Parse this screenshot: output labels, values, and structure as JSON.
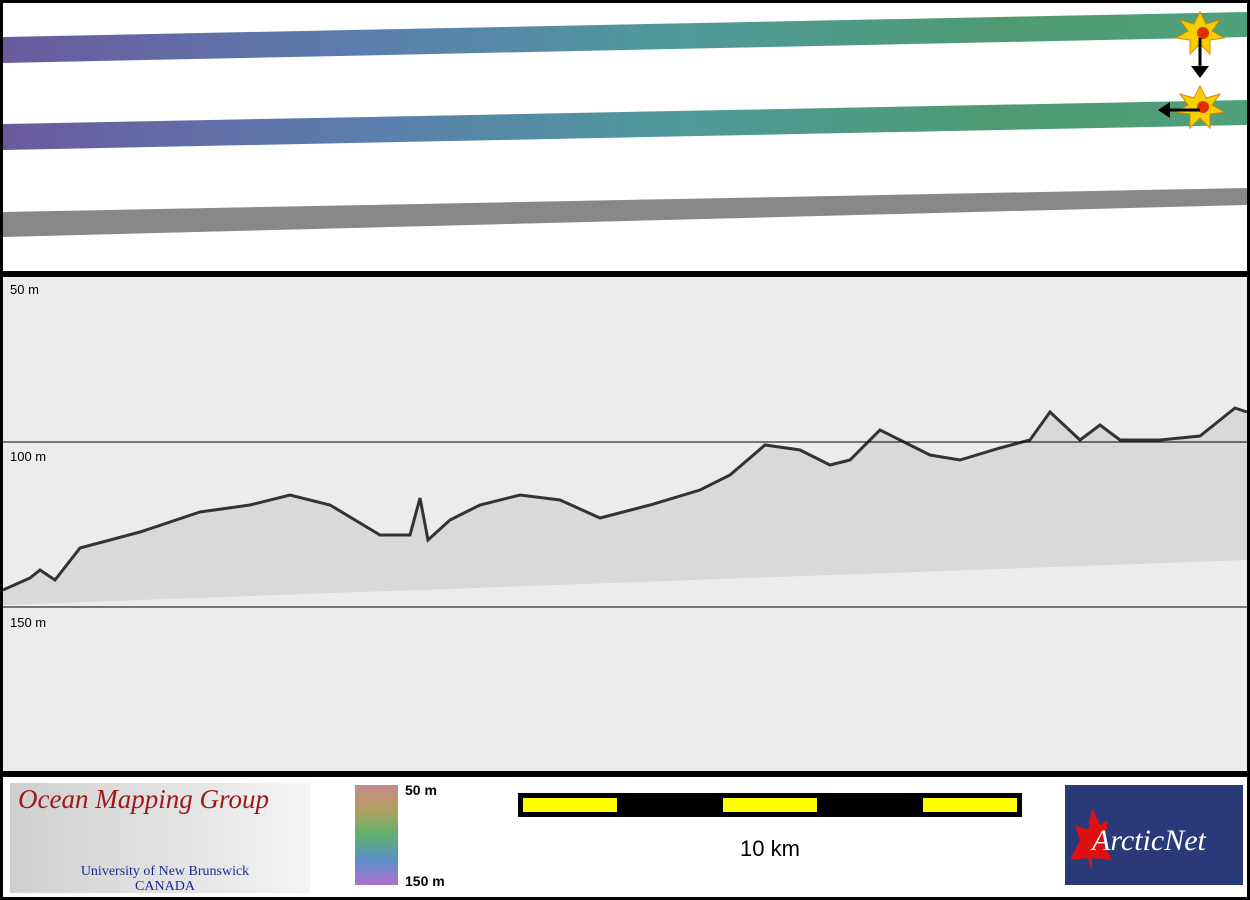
{
  "profile": {
    "depth_labels": [
      "50 m",
      "100 m",
      "150 m"
    ]
  },
  "footer": {
    "logo": {
      "title": "Ocean Mapping Group",
      "university": "University of New Brunswick",
      "country": "CANADA"
    },
    "colorbar": {
      "top": "50 m",
      "bottom": "150 m"
    },
    "scale_bar": {
      "label": "10 km"
    },
    "partner": {
      "name": "ArcticNet"
    }
  }
}
